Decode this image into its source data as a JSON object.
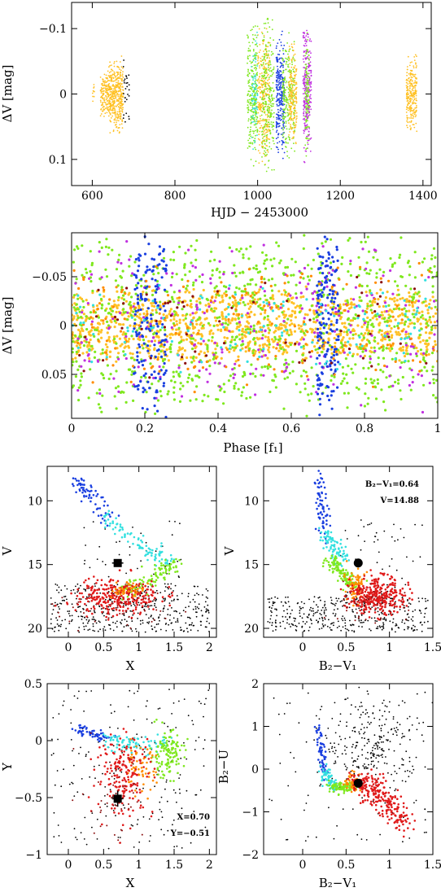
{
  "colors": {
    "yellow": "#ffc125",
    "green": "#7fe81e",
    "cyan": "#33e0e0",
    "blue": "#1a3fe0",
    "magenta": "#c030e0",
    "orange": "#ff8c00",
    "red": "#e01a1a",
    "darkred": "#8b1010",
    "black": "#000000"
  },
  "chart_data": [
    {
      "id": "lightcurve",
      "type": "scatter",
      "xlabel": "HJD − 2453000",
      "ylabel": "ΔV [mag]",
      "xlim": [
        550,
        1420
      ],
      "ylim": [
        0.14,
        -0.14
      ],
      "xticks": [
        600,
        800,
        1000,
        1200,
        1400
      ],
      "yticks": [
        -0.1,
        0,
        0.1
      ],
      "ytick_labels": [
        "−0.1",
        "0",
        "0.1"
      ],
      "clusters": [
        {
          "x": [
            600,
            605
          ],
          "amp": 0.02,
          "color": "yellow",
          "n": 10
        },
        {
          "x": [
            620,
            640
          ],
          "amp": 0.035,
          "color": "yellow",
          "n": 140
        },
        {
          "x": [
            640,
            675
          ],
          "amp": 0.06,
          "color": "yellow",
          "n": 420
        },
        {
          "x": [
            675,
            690
          ],
          "amp": 0.06,
          "color": "black",
          "n": 30
        },
        {
          "x": [
            975,
            1000
          ],
          "amp": 0.11,
          "color": "green",
          "n": 260
        },
        {
          "x": [
            985,
            1000
          ],
          "amp": 0.1,
          "color": "cyan",
          "n": 70
        },
        {
          "x": [
            1000,
            1030
          ],
          "amp": 0.11,
          "color": "yellow",
          "n": 300
        },
        {
          "x": [
            1010,
            1040
          ],
          "amp": 0.12,
          "color": "green",
          "n": 260
        },
        {
          "x": [
            1045,
            1065
          ],
          "amp": 0.1,
          "color": "blue",
          "n": 280
        },
        {
          "x": [
            1060,
            1090
          ],
          "amp": 0.1,
          "color": "green",
          "n": 240
        },
        {
          "x": [
            1075,
            1095
          ],
          "amp": 0.08,
          "color": "yellow",
          "n": 200
        },
        {
          "x": [
            1110,
            1130
          ],
          "amp": 0.11,
          "color": "magenta",
          "n": 280
        },
        {
          "x": [
            1115,
            1125
          ],
          "amp": 0.1,
          "color": "green",
          "n": 120
        },
        {
          "x": [
            1360,
            1385
          ],
          "amp": 0.06,
          "color": "yellow",
          "n": 260
        }
      ]
    },
    {
      "id": "phased",
      "type": "scatter",
      "xlabel": "Phase [f₁]",
      "ylabel": "ΔV [mag]",
      "xlim": [
        0,
        1
      ],
      "ylim": [
        0.095,
        -0.095
      ],
      "xticks": [
        0,
        0.2,
        0.4,
        0.6,
        0.8,
        1
      ],
      "xtick_labels": [
        "0",
        "0.2",
        "0.4",
        "0.6",
        "0.8",
        "1"
      ],
      "yticks": [
        -0.05,
        0,
        0.05
      ],
      "ytick_labels": [
        "−0.05",
        "0",
        "0.05"
      ],
      "groups": [
        {
          "color": "yellow",
          "n": 1100,
          "amp": 0.04
        },
        {
          "color": "green",
          "n": 900,
          "amp": 0.095
        },
        {
          "color": "magenta",
          "n": 250,
          "amp": 0.09
        },
        {
          "color": "blue",
          "n": 330,
          "amp": 0.095,
          "bands": [
            [
              0.17,
              0.26
            ],
            [
              0.67,
              0.73
            ]
          ]
        },
        {
          "color": "orange",
          "n": 200,
          "amp": 0.07
        },
        {
          "color": "darkred",
          "n": 60,
          "amp": 0.06
        },
        {
          "color": "cyan",
          "n": 120,
          "amp": 0.05
        }
      ]
    },
    {
      "id": "cmd-x-v",
      "type": "scatter",
      "xlabel": "X",
      "ylabel": "V",
      "xlim": [
        -0.3,
        2.1
      ],
      "ylim": [
        20.7,
        7.3
      ],
      "xticks": [
        0,
        0.5,
        1,
        1.5,
        2
      ],
      "xtick_labels": [
        "0",
        "0.5",
        "1",
        "1.5",
        "2"
      ],
      "yticks": [
        10,
        15,
        20
      ],
      "ytick_labels": [
        "10",
        "15",
        "20"
      ],
      "star": {
        "x": 0.7,
        "y": 14.88
      }
    },
    {
      "id": "cmd-bv-v",
      "type": "scatter",
      "xlabel": "B₂−V₁",
      "ylabel": "V",
      "xlim": [
        -0.45,
        1.5
      ],
      "ylim": [
        20.7,
        7.3
      ],
      "xticks": [
        0,
        0.5,
        1,
        1.5
      ],
      "xtick_labels": [
        "0",
        "0.5",
        "1",
        "1.5"
      ],
      "yticks": [
        10,
        15,
        20
      ],
      "ytick_labels": [
        "10",
        "15",
        "20"
      ],
      "star": {
        "x": 0.64,
        "y": 14.88
      },
      "annotations": [
        "B₂−V₁=0.64",
        "V=14.88"
      ]
    },
    {
      "id": "ccd-x-y",
      "type": "scatter",
      "xlabel": "X",
      "ylabel": "Y",
      "xlim": [
        -0.3,
        2.1
      ],
      "ylim": [
        -1.0,
        0.5
      ],
      "xticks": [
        0,
        0.5,
        1,
        1.5,
        2
      ],
      "xtick_labels": [
        "0",
        "0.5",
        "1",
        "1.5",
        "2"
      ],
      "yticks": [
        -1,
        -0.5,
        0,
        0.5
      ],
      "ytick_labels": [
        "−1",
        "−0.5",
        "0",
        "0.5"
      ],
      "star": {
        "x": 0.7,
        "y": -0.51
      },
      "annotations": [
        "X=0.70",
        "Y=−0.51"
      ]
    },
    {
      "id": "ccd-bv-bu",
      "type": "scatter",
      "xlabel": "B₂−V₁",
      "ylabel": "B₂−U",
      "xlim": [
        -0.45,
        1.5
      ],
      "ylim": [
        -2,
        2
      ],
      "xticks": [
        0,
        0.5,
        1,
        1.5
      ],
      "xtick_labels": [
        "0",
        "0.5",
        "1",
        "1.5"
      ],
      "yticks": [
        -2,
        -1,
        0,
        1,
        2
      ],
      "ytick_labels": [
        "−2",
        "−1",
        "0",
        "1",
        "2"
      ],
      "star": {
        "x": 0.64,
        "y": -0.33
      }
    }
  ]
}
